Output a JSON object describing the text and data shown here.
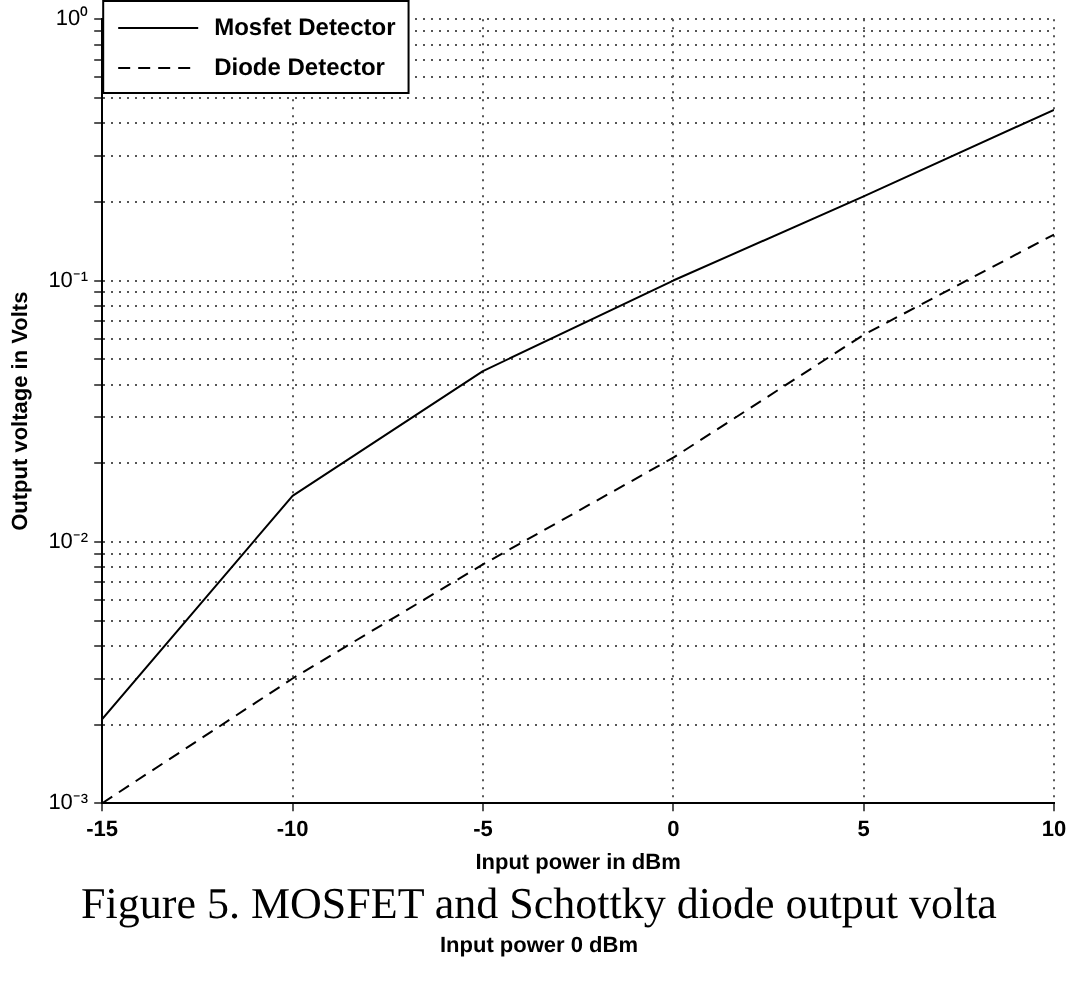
{
  "chart_data": {
    "type": "line",
    "xlabel": "Input power in dBm",
    "ylabel": "Output voltage in Volts",
    "x": [
      -15,
      -10,
      -5,
      0,
      5,
      10
    ],
    "series": [
      {
        "name": "Mosfet Detector",
        "color": "#000000",
        "line_style": "solid",
        "values": [
          0.0021,
          0.015,
          0.045,
          0.1,
          0.21,
          0.45
        ]
      },
      {
        "name": "Diode Detector",
        "color": "#000000",
        "line_style": "dashed",
        "values": [
          0.001,
          0.003,
          0.0082,
          0.021,
          0.062,
          0.15
        ]
      }
    ],
    "log": "y",
    "xlim": [
      -15,
      10
    ],
    "xticks": [
      -15,
      -10,
      -5,
      0,
      5,
      10
    ],
    "ylim": [
      0.001,
      1
    ],
    "yticks": [
      {
        "value": 0.001,
        "label": "10⁻³"
      },
      {
        "value": 0.002,
        "label": null
      },
      {
        "value": 0.003,
        "label": null
      },
      {
        "value": 0.004,
        "label": null
      },
      {
        "value": 0.005,
        "label": null
      },
      {
        "value": 0.006,
        "label": null
      },
      {
        "value": 0.007,
        "label": null
      },
      {
        "value": 0.008,
        "label": null
      },
      {
        "value": 0.009,
        "label": null
      },
      {
        "value": 0.01,
        "label": "10⁻²"
      },
      {
        "value": 0.02,
        "label": null
      },
      {
        "value": 0.03,
        "label": null
      },
      {
        "value": 0.04,
        "label": null
      },
      {
        "value": 0.05,
        "label": null
      },
      {
        "value": 0.06,
        "label": null
      },
      {
        "value": 0.07,
        "label": null
      },
      {
        "value": 0.08,
        "label": null
      },
      {
        "value": 0.09,
        "label": null
      },
      {
        "value": 0.1,
        "label": "10⁻¹"
      },
      {
        "value": 0.2,
        "label": null
      },
      {
        "value": 0.3,
        "label": null
      },
      {
        "value": 0.4,
        "label": null
      },
      {
        "value": 0.5,
        "label": null
      },
      {
        "value": 0.6,
        "label": null
      },
      {
        "value": 0.7,
        "label": null
      },
      {
        "value": 0.8,
        "label": null
      },
      {
        "value": 0.9,
        "label": null
      },
      {
        "value": 1,
        "label": "10⁰"
      }
    ],
    "grid": true,
    "legend": "top left",
    "marker": "none",
    "annotations": [
      "Figure 5. MOSFET and Schottky diode output volta",
      "Input power 0 dBm"
    ]
  }
}
